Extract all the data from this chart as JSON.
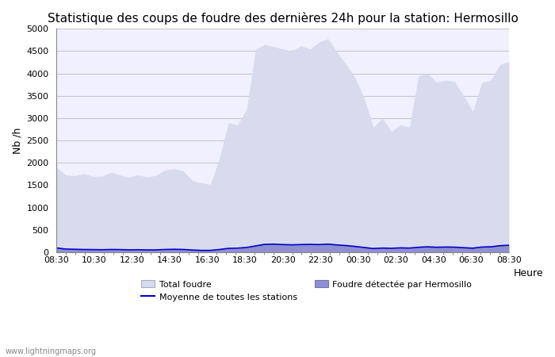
{
  "title": "Statistique des coups de foudre des dernières 24h pour la station: Hermosillo",
  "ylabel": "Nb /h",
  "xlabel": "Heure",
  "watermark": "www.lightningmaps.org",
  "ylim": [
    0,
    5000
  ],
  "yticks": [
    0,
    500,
    1000,
    1500,
    2000,
    2500,
    3000,
    3500,
    4000,
    4500,
    5000
  ],
  "xtick_labels": [
    "08:30",
    "10:30",
    "12:30",
    "14:30",
    "16:30",
    "18:30",
    "20:30",
    "22:30",
    "00:30",
    "02:30",
    "04:30",
    "06:30",
    "08:30"
  ],
  "bg_color": "#ffffff",
  "plot_bg_color": "#f0f0ff",
  "grid_color": "#c8c8c8",
  "fill_total_color": "#d8daee",
  "fill_local_color": "#9090d0",
  "line_color": "#0000cc",
  "title_fontsize": 11,
  "total_foudre": [
    1900,
    1730,
    1710,
    1760,
    1700,
    1700,
    1790,
    1730,
    1680,
    1730,
    1680,
    1720,
    1840,
    1870,
    1820,
    1600,
    1550,
    1520,
    2100,
    2900,
    2850,
    3200,
    4550,
    4650,
    4600,
    4550,
    4500,
    4620,
    4550,
    4700,
    4780,
    4480,
    4200,
    3900,
    3450,
    2800,
    3000,
    2700,
    2850,
    2800,
    3950,
    4000,
    3800,
    3850,
    3820,
    3500,
    3150,
    3800,
    3850,
    4200,
    4270
  ],
  "local_foudre": [
    100,
    70,
    65,
    60,
    58,
    55,
    58,
    56,
    50,
    52,
    50,
    52,
    58,
    65,
    60,
    50,
    42,
    42,
    58,
    80,
    85,
    100,
    145,
    180,
    185,
    175,
    170,
    175,
    180,
    175,
    185,
    168,
    155,
    135,
    110,
    88,
    95,
    90,
    100,
    95,
    115,
    125,
    115,
    120,
    115,
    105,
    95,
    120,
    125,
    150,
    160
  ],
  "mean_line": [
    95,
    70,
    65,
    60,
    58,
    55,
    60,
    58,
    52,
    55,
    50,
    52,
    60,
    65,
    60,
    48,
    40,
    40,
    60,
    85,
    90,
    105,
    140,
    175,
    180,
    170,
    165,
    170,
    175,
    170,
    180,
    162,
    148,
    128,
    105,
    82,
    92,
    87,
    97,
    92,
    110,
    120,
    110,
    115,
    112,
    100,
    90,
    115,
    120,
    145,
    155
  ],
  "legend_total": "Total foudre",
  "legend_mean": "Moyenne de toutes les stations",
  "legend_local": "Foudre détectée par Hermosillo",
  "n_points": 51,
  "n_xtick_labels": 13
}
